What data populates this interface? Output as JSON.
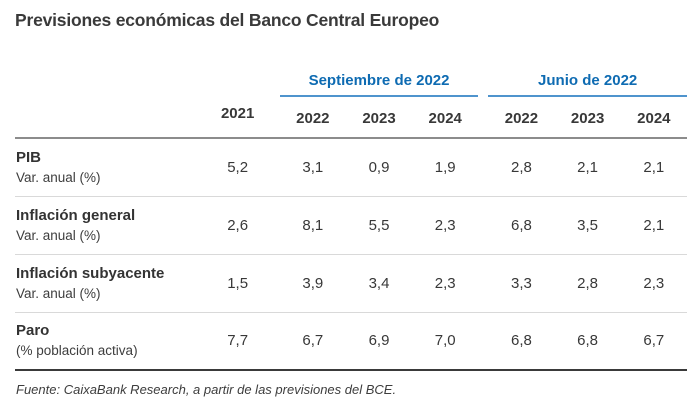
{
  "title": "Previsiones económicas del Banco Central Europeo",
  "colors": {
    "accent_blue": "#0e6bb2",
    "underline_blue": "#4f94cd",
    "text_dark": "#383838",
    "top_border_gray": "#8c8c8c",
    "row_divider_gray": "#d9d9d9",
    "bottom_border_dark": "#3a3a3a"
  },
  "table": {
    "base_year": "2021",
    "groups": [
      {
        "label": "Septiembre de 2022",
        "years": [
          "2022",
          "2023",
          "2024"
        ]
      },
      {
        "label": "Junio de 2022",
        "years": [
          "2022",
          "2023",
          "2024"
        ]
      }
    ],
    "rows": [
      {
        "label": "PIB",
        "sublabel": "Var. anual (%)",
        "values": [
          "5,2",
          "3,1",
          "0,9",
          "1,9",
          "2,8",
          "2,1",
          "2,1"
        ]
      },
      {
        "label": "Inflación general",
        "sublabel": "Var. anual (%)",
        "values": [
          "2,6",
          "8,1",
          "5,5",
          "2,3",
          "6,8",
          "3,5",
          "2,1"
        ]
      },
      {
        "label": "Inflación subyacente",
        "sublabel": "Var. anual (%)",
        "values": [
          "1,5",
          "3,9",
          "3,4",
          "2,3",
          "3,3",
          "2,8",
          "2,3"
        ]
      },
      {
        "label": "Paro",
        "sublabel": "(% población activa)",
        "values": [
          "7,7",
          "6,7",
          "6,9",
          "7,0",
          "6,8",
          "6,8",
          "6,7"
        ]
      }
    ]
  },
  "footer": {
    "source": "Fuente: CaixaBank Research, a partir de las previsiones del BCE."
  },
  "chart_data": {
    "type": "table",
    "title": "Previsiones económicas del Banco Central Europeo",
    "column_groups": [
      {
        "label": "",
        "columns": [
          "2021"
        ]
      },
      {
        "label": "Septiembre de 2022",
        "columns": [
          "2022",
          "2023",
          "2024"
        ]
      },
      {
        "label": "Junio de 2022",
        "columns": [
          "2022",
          "2023",
          "2024"
        ]
      }
    ],
    "rows": [
      {
        "label": "PIB",
        "unit": "Var. anual (%)",
        "values": [
          5.2,
          3.1,
          0.9,
          1.9,
          2.8,
          2.1,
          2.1
        ]
      },
      {
        "label": "Inflación general",
        "unit": "Var. anual (%)",
        "values": [
          2.6,
          8.1,
          5.5,
          2.3,
          6.8,
          3.5,
          2.1
        ]
      },
      {
        "label": "Inflación subyacente",
        "unit": "Var. anual (%)",
        "values": [
          1.5,
          3.9,
          3.4,
          2.3,
          3.3,
          2.8,
          2.3
        ]
      },
      {
        "label": "Paro",
        "unit": "(% población activa)",
        "values": [
          7.7,
          6.7,
          6.9,
          7.0,
          6.8,
          6.8,
          6.7
        ]
      }
    ],
    "decimal_separator": ",",
    "source": "Fuente: CaixaBank Research, a partir de las previsiones del BCE."
  }
}
